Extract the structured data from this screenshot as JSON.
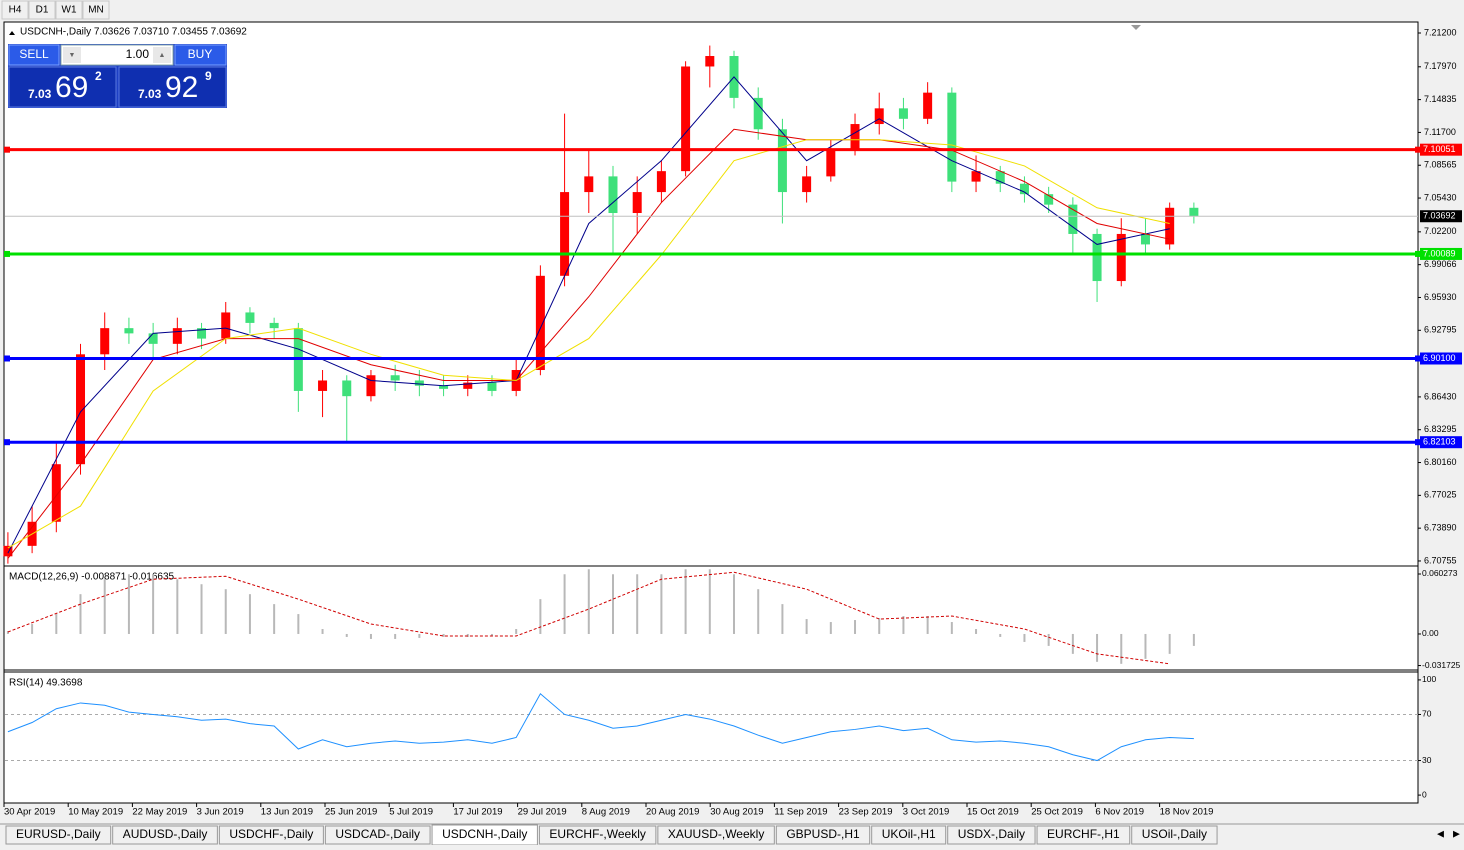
{
  "timeframes": [
    "H4",
    "D1",
    "W1",
    "MN"
  ],
  "trade_panel": {
    "sell": "SELL",
    "buy": "BUY",
    "lot": "1.00",
    "bid": {
      "big": "7.03",
      "pips": "69",
      "frac": "2"
    },
    "ask": {
      "big": "7.03",
      "pips": "92",
      "frac": "9"
    }
  },
  "chart_data": [
    {
      "type": "candlestick",
      "title": "USDCNH-,Daily  7.03626 7.03710 7.03455 7.03692",
      "up_color": "#ff0000",
      "down_color": "#3ee07a",
      "xlim": [
        -0.12,
        58.26
      ],
      "ylim": [
        6.7037,
        7.2225
      ],
      "yticks": [
        {
          "value": 7.212,
          "label": "7.21200"
        },
        {
          "value": 7.1797,
          "label": "7.17970"
        },
        7.14835,
        {
          "value": 7.117,
          "label": "7.11700"
        },
        7.08565,
        {
          "value": 7.0543,
          "label": "7.05430"
        },
        {
          "value": 7.022,
          "label": "7.02200"
        },
        6.99066,
        {
          "value": 6.9593,
          "label": "6.95930"
        },
        6.92795,
        {
          "value": 6.8643,
          "label": "6.86430"
        },
        6.83295,
        {
          "value": 6.8016,
          "label": "6.80160"
        },
        6.77025,
        {
          "value": 6.7389,
          "label": "6.73890"
        },
        6.70755
      ],
      "candles": [
        [
          6.712,
          6.735,
          6.705,
          6.722
        ],
        [
          6.722,
          6.76,
          6.715,
          6.745
        ],
        [
          6.745,
          6.82,
          6.735,
          6.8
        ],
        [
          6.8,
          6.915,
          6.79,
          6.905
        ],
        [
          6.905,
          6.945,
          6.89,
          6.93
        ],
        [
          6.93,
          6.94,
          6.915,
          6.925
        ],
        [
          6.925,
          6.935,
          6.9,
          6.915
        ],
        [
          6.915,
          6.94,
          6.905,
          6.93
        ],
        [
          6.93,
          6.935,
          6.91,
          6.92
        ],
        [
          6.92,
          6.955,
          6.915,
          6.945
        ],
        [
          6.945,
          6.95,
          6.925,
          6.935
        ],
        [
          6.935,
          6.94,
          6.92,
          6.93
        ],
        [
          6.93,
          6.935,
          6.85,
          6.87
        ],
        [
          6.87,
          6.89,
          6.845,
          6.88
        ],
        [
          6.88,
          6.885,
          6.82,
          6.865
        ],
        [
          6.865,
          6.89,
          6.86,
          6.885
        ],
        [
          6.885,
          6.895,
          6.87,
          6.88
        ],
        [
          6.88,
          6.89,
          6.865,
          6.875
        ],
        [
          6.875,
          6.885,
          6.865,
          6.872
        ],
        [
          6.872,
          6.885,
          6.865,
          6.878
        ],
        [
          6.878,
          6.885,
          6.865,
          6.87
        ],
        [
          6.87,
          6.9,
          6.865,
          6.89
        ],
        [
          6.89,
          6.99,
          6.885,
          6.98
        ],
        [
          6.98,
          7.135,
          6.97,
          7.06
        ],
        [
          7.06,
          7.1,
          7.04,
          7.075
        ],
        [
          7.075,
          7.085,
          7.0,
          7.04
        ],
        [
          7.04,
          7.075,
          7.02,
          7.06
        ],
        [
          7.06,
          7.09,
          7.05,
          7.08
        ],
        [
          7.08,
          7.185,
          7.075,
          7.18
        ],
        [
          7.18,
          7.2,
          7.16,
          7.19
        ],
        [
          7.19,
          7.195,
          7.14,
          7.15
        ],
        [
          7.15,
          7.16,
          7.11,
          7.12
        ],
        [
          7.12,
          7.13,
          7.03,
          7.06
        ],
        [
          7.06,
          7.085,
          7.05,
          7.075
        ],
        [
          7.075,
          7.11,
          7.07,
          7.1
        ],
        [
          7.1,
          7.135,
          7.095,
          7.125
        ],
        [
          7.125,
          7.155,
          7.115,
          7.14
        ],
        [
          7.14,
          7.15,
          7.12,
          7.13
        ],
        [
          7.13,
          7.165,
          7.125,
          7.155
        ],
        [
          7.155,
          7.16,
          7.06,
          7.07
        ],
        [
          7.07,
          7.095,
          7.06,
          7.08
        ],
        [
          7.08,
          7.085,
          7.06,
          7.068
        ],
        [
          7.068,
          7.075,
          7.05,
          7.058
        ],
        [
          7.058,
          7.065,
          7.04,
          7.048
        ],
        [
          7.048,
          7.055,
          7.0,
          7.02
        ],
        [
          7.02,
          7.025,
          6.955,
          6.975
        ],
        [
          6.975,
          7.035,
          6.97,
          7.02
        ],
        [
          7.02,
          7.035,
          7.0,
          7.01
        ],
        [
          7.01,
          7.05,
          7.005,
          7.045
        ],
        [
          7.045,
          7.05,
          7.03,
          7.03692
        ]
      ],
      "series": [
        {
          "color": "#00008b",
          "x": [
            0,
            3,
            6,
            9,
            12,
            15,
            18,
            21,
            24,
            27,
            30,
            33,
            36,
            39,
            42,
            45,
            48
          ],
          "values": [
            6.715,
            6.85,
            6.925,
            6.93,
            6.91,
            6.88,
            6.875,
            6.88,
            7.03,
            7.09,
            7.17,
            7.09,
            7.13,
            7.09,
            7.06,
            7.01,
            7.025
          ]
        },
        {
          "color": "#e00000",
          "x": [
            0,
            3,
            6,
            9,
            12,
            15,
            18,
            21,
            24,
            27,
            30,
            33,
            36,
            39,
            42,
            45,
            48
          ],
          "values": [
            6.71,
            6.8,
            6.9,
            6.92,
            6.92,
            6.895,
            6.88,
            6.88,
            6.96,
            7.05,
            7.12,
            7.11,
            7.11,
            7.1,
            7.07,
            7.03,
            7.015
          ]
        },
        {
          "color": "#f0e000",
          "x": [
            0,
            3,
            6,
            9,
            12,
            15,
            18,
            21,
            24,
            27,
            30,
            33,
            36,
            39,
            42,
            45,
            48
          ],
          "values": [
            6.72,
            6.76,
            6.87,
            6.92,
            6.93,
            6.905,
            6.885,
            6.88,
            6.92,
            7.0,
            7.09,
            7.11,
            7.11,
            7.105,
            7.085,
            7.045,
            7.03
          ]
        }
      ],
      "levels": [
        {
          "value": 7.10051,
          "color": "#ff0000"
        },
        {
          "value": 7.00089,
          "color": "#00e000"
        },
        {
          "value": 6.901,
          "label": "6.90100",
          "color": "#0000ff"
        },
        {
          "value": 6.82103,
          "color": "#0000ff"
        }
      ],
      "current": {
        "value": 7.03692,
        "color": "#c0c0c0"
      },
      "x_labels": [
        "30 Apr 2019",
        "10 May 2019",
        "22 May 2019",
        "3 Jun 2019",
        "13 Jun 2019",
        "25 Jun 2019",
        "5 Jul 2019",
        "17 Jul 2019",
        "29 Jul 2019",
        "8 Aug 2019",
        "20 Aug 2019",
        "30 Aug 2019",
        "11 Sep 2019",
        "23 Sep 2019",
        "3 Oct 2019",
        "15 Oct 2019",
        "25 Oct 2019",
        "6 Nov 2019",
        "18 Nov 2019"
      ]
    },
    {
      "type": "macd",
      "title": "MACD(12,26,9) -0.008871 -0.016635",
      "xlim": [
        -0.12,
        58.26
      ],
      "ylim": [
        -0.0352,
        0.0673
      ],
      "yticks": [
        {
          "value": 0.060273,
          "label": "0.060273"
        },
        {
          "value": 0,
          "label": "0.00"
        },
        {
          "value": -0.031725,
          "label": "-0.031725"
        }
      ],
      "histogram_color": "#b8b8b8",
      "histogram": [
        0.003,
        0.01,
        0.02,
        0.04,
        0.055,
        0.06,
        0.06,
        0.055,
        0.05,
        0.045,
        0.04,
        0.03,
        0.02,
        0.005,
        -0.003,
        -0.005,
        -0.005,
        -0.004,
        -0.003,
        -0.003,
        -0.002,
        0.005,
        0.035,
        0.06,
        0.065,
        0.06,
        0.06,
        0.06,
        0.065,
        0.065,
        0.06,
        0.045,
        0.03,
        0.015,
        0.012,
        0.014,
        0.016,
        0.018,
        0.018,
        0.012,
        0.005,
        -0.003,
        -0.008,
        -0.012,
        -0.02,
        -0.028,
        -0.03,
        -0.025,
        -0.02,
        -0.012
      ],
      "signal": {
        "color": "#d00000",
        "x": [
          0,
          3,
          6,
          9,
          12,
          15,
          18,
          21,
          24,
          27,
          30,
          33,
          36,
          39,
          42,
          45,
          48
        ],
        "values": [
          0.002,
          0.03,
          0.055,
          0.058,
          0.035,
          0.01,
          -0.002,
          -0.002,
          0.025,
          0.055,
          0.062,
          0.045,
          0.015,
          0.018,
          0.005,
          -0.02,
          -0.03
        ]
      }
    },
    {
      "type": "rsi",
      "title": "RSI(14) 49.3698",
      "color": "#1e90ff",
      "xlim": [
        -0.12,
        58.26
      ],
      "ylim": [
        -6,
        106
      ],
      "yticks": [
        0,
        30,
        70,
        100
      ],
      "levels": [
        30,
        70
      ],
      "values": [
        55,
        63,
        75,
        80,
        78,
        72,
        70,
        68,
        65,
        66,
        62,
        60,
        40,
        48,
        42,
        45,
        47,
        45,
        46,
        48,
        45,
        50,
        88,
        70,
        65,
        58,
        60,
        65,
        70,
        66,
        60,
        52,
        45,
        50,
        55,
        57,
        60,
        56,
        58,
        48,
        46,
        47,
        45,
        42,
        35,
        30,
        42,
        48,
        50,
        49
      ]
    }
  ],
  "tabs": [
    "EURUSD-,Daily",
    "AUDUSD-,Daily",
    "USDCHF-,Daily",
    "USDCAD-,Daily",
    "USDCNH-,Daily",
    "EURCHF-,Weekly",
    "XAUUSD-,Weekly",
    "GBPUSD-,H1",
    "UKOil-,H1",
    "USDX-,Daily",
    "EURCHF-,H1",
    "USOil-,Daily"
  ],
  "active_tab": 4
}
